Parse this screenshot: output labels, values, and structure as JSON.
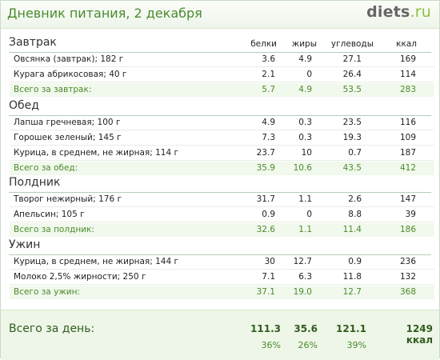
{
  "header": {
    "title": "Дневник питания, 2 декабря",
    "logo_main": "diets",
    "logo_suffix": ".ru"
  },
  "columns": {
    "protein": "белки",
    "fat": "жиры",
    "carbs": "углеводы",
    "kcal": "ккал"
  },
  "meals": [
    {
      "title": "Завтрак",
      "items": [
        {
          "name": "Овсянка (завтрак); 182 г",
          "protein": "3.6",
          "fat": "4.9",
          "carbs": "27.1",
          "kcal": "169"
        },
        {
          "name": "Курага абрикосовая; 40 г",
          "protein": "2.1",
          "fat": "0",
          "carbs": "26.4",
          "kcal": "114"
        }
      ],
      "total": {
        "name": "Всего за завтрак:",
        "protein": "5.7",
        "fat": "4.9",
        "carbs": "53.5",
        "kcal": "283"
      }
    },
    {
      "title": "Обед",
      "items": [
        {
          "name": "Лапша гречневая; 100 г",
          "protein": "4.9",
          "fat": "0.3",
          "carbs": "23.5",
          "kcal": "116"
        },
        {
          "name": "Горошек зеленый; 145 г",
          "protein": "7.3",
          "fat": "0.3",
          "carbs": "19.3",
          "kcal": "109"
        },
        {
          "name": "Курица, в среднем, не жирная; 114 г",
          "protein": "23.7",
          "fat": "10",
          "carbs": "0.7",
          "kcal": "187"
        }
      ],
      "total": {
        "name": "Всего за обед:",
        "protein": "35.9",
        "fat": "10.6",
        "carbs": "43.5",
        "kcal": "412"
      }
    },
    {
      "title": "Полдник",
      "items": [
        {
          "name": "Творог нежирный; 176 г",
          "protein": "31.7",
          "fat": "1.1",
          "carbs": "2.6",
          "kcal": "147"
        },
        {
          "name": "Апельсин; 105 г",
          "protein": "0.9",
          "fat": "0",
          "carbs": "8.8",
          "kcal": "39"
        }
      ],
      "total": {
        "name": "Всего за полдник:",
        "protein": "32.6",
        "fat": "1.1",
        "carbs": "11.4",
        "kcal": "186"
      }
    },
    {
      "title": "Ужин",
      "items": [
        {
          "name": "Курица, в среднем, не жирная; 144 г",
          "protein": "30",
          "fat": "12.7",
          "carbs": "0.9",
          "kcal": "236"
        },
        {
          "name": "Молоко 2,5% жирности; 250 г",
          "protein": "7.1",
          "fat": "6.3",
          "carbs": "11.8",
          "kcal": "132"
        }
      ],
      "total": {
        "name": "Всего за ужин:",
        "protein": "37.1",
        "fat": "19.0",
        "carbs": "12.7",
        "kcal": "368"
      }
    }
  ],
  "day_total": {
    "label": "Всего за день:",
    "protein": "111.3",
    "fat": "35.6",
    "carbs": "121.1",
    "kcal": "1249 ккал",
    "protein_pct": "36%",
    "fat_pct": "26%",
    "carbs_pct": "39%"
  }
}
